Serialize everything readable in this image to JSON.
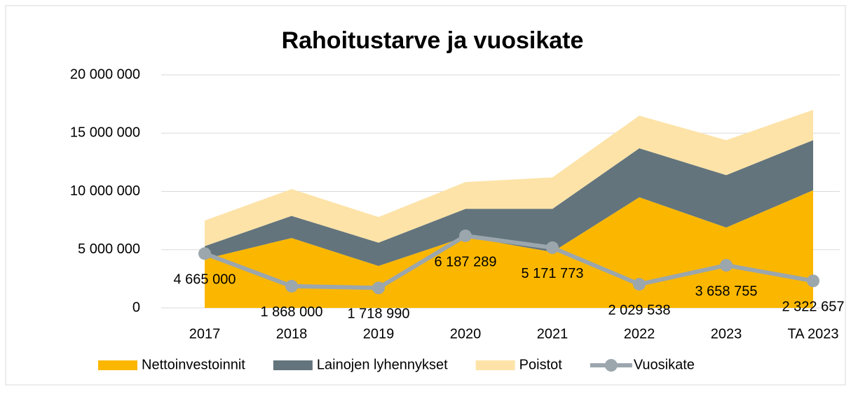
{
  "chart_data": {
    "type": "stacked_area_line",
    "title": "Rahoitustarve ja vuosikate",
    "categories": [
      "2017",
      "2018",
      "2019",
      "2020",
      "2021",
      "2022",
      "2023",
      "TA 2023"
    ],
    "series": [
      {
        "name": "Nettoinvestoinnit",
        "color": "#fbb700",
        "values": [
          4200000,
          6000000,
          3600000,
          6100000,
          4800000,
          9500000,
          6900000,
          10100000
        ]
      },
      {
        "name": "Lainojen lyhennykset",
        "color": "#63747c",
        "values": [
          1100000,
          1900000,
          2000000,
          2400000,
          3700000,
          4200000,
          4500000,
          4300000
        ]
      },
      {
        "name": "Poistot",
        "color": "#fde3a8",
        "values": [
          2200000,
          2300000,
          2200000,
          2300000,
          2700000,
          2800000,
          3000000,
          2600000
        ]
      },
      {
        "name": "Vuosikate",
        "color": "#9ba6ad",
        "type": "line",
        "values": [
          4665000,
          1868000,
          1718990,
          6187289,
          5171773,
          2029538,
          3658755,
          2322657
        ],
        "value_labels": [
          "4 665 000",
          "1 868 000",
          "1 718 990",
          "6 187 289",
          "5 171 773",
          "2 029 538",
          "3 658 755",
          "2 322 657"
        ]
      }
    ],
    "ylim": [
      0,
      20000000
    ],
    "yticks": [
      {
        "value": 0,
        "label": "0"
      },
      {
        "value": 5000000,
        "label": "5 000 000"
      },
      {
        "value": 10000000,
        "label": "10 000 000"
      },
      {
        "value": 15000000,
        "label": "15 000 000"
      },
      {
        "value": 20000000,
        "label": "20 000 000"
      }
    ],
    "grid": true,
    "legend": "bottom"
  }
}
